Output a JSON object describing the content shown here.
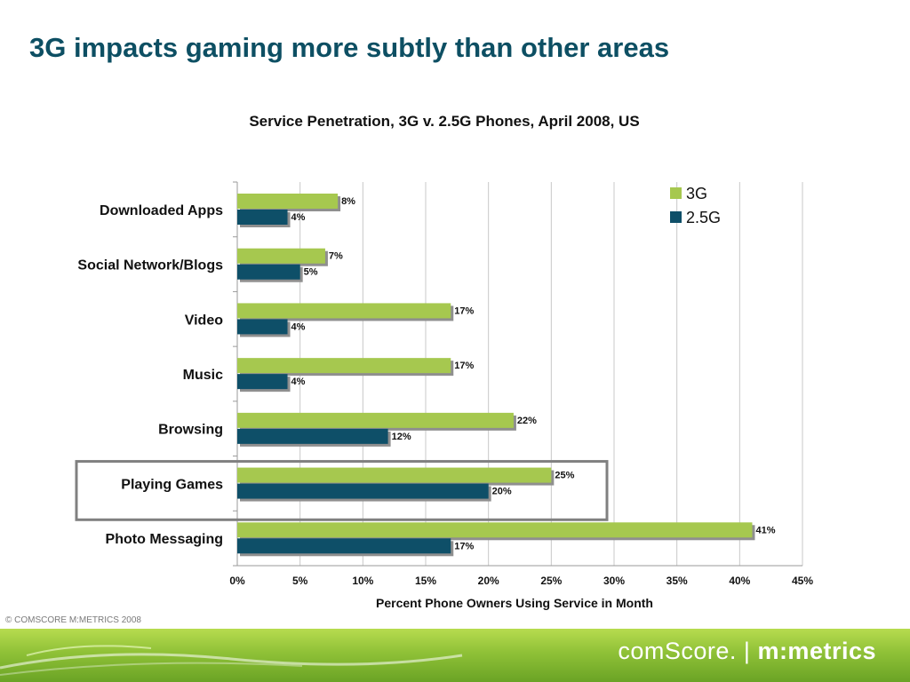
{
  "slide": {
    "title": "3G impacts gaming more subtly than other areas",
    "copyright": "© COMSCORE M:METRICS 2008"
  },
  "logo": {
    "brand_left": "comScore.",
    "separator": "|",
    "brand_right": "m:metrics"
  },
  "colors": {
    "series_3g": "#a6c84f",
    "series_25g": "#0e4f68",
    "title": "#0d4f63",
    "highlight_box": "#808080"
  },
  "chart_data": {
    "type": "bar",
    "orientation": "horizontal",
    "title": "Service Penetration, 3G v. 2.5G Phones, April 2008, US",
    "xlabel": "Percent Phone Owners Using Service in Month",
    "ylabel": "",
    "xlim": [
      0,
      45
    ],
    "x_ticks": [
      "0%",
      "5%",
      "10%",
      "15%",
      "20%",
      "25%",
      "30%",
      "35%",
      "40%",
      "45%"
    ],
    "categories": [
      "Downloaded Apps",
      "Social Network/Blogs",
      "Video",
      "Music",
      "Browsing",
      "Playing Games",
      "Photo Messaging"
    ],
    "series": [
      {
        "name": "3G",
        "values": [
          8,
          7,
          17,
          17,
          22,
          25,
          41
        ],
        "labels": [
          "8%",
          "7%",
          "17%",
          "17%",
          "22%",
          "25%",
          "41%"
        ]
      },
      {
        "name": "2.5G",
        "values": [
          4,
          5,
          4,
          4,
          12,
          20,
          17
        ],
        "labels": [
          "4%",
          "5%",
          "4%",
          "4%",
          "12%",
          "20%",
          "17%"
        ]
      }
    ],
    "highlighted_category": "Playing Games",
    "grid": true,
    "legend": "top-right"
  }
}
